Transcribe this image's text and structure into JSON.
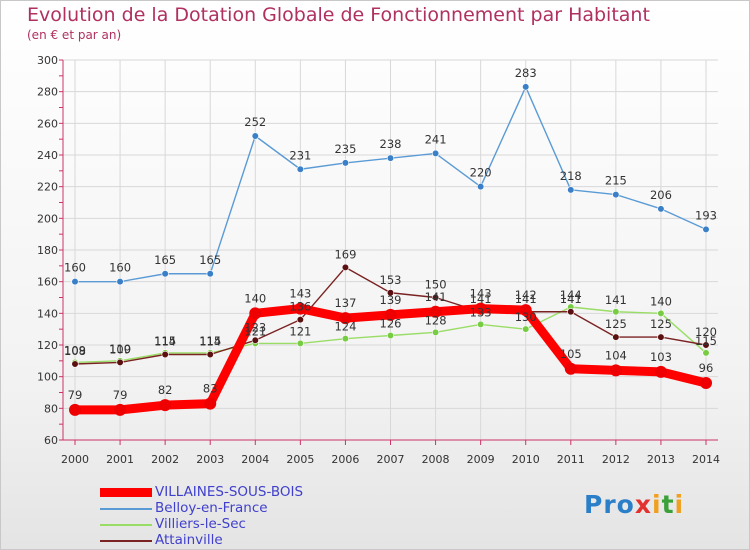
{
  "title": "Evolution de la Dotation Globale de Fonctionnement par Habitant",
  "subtitle": "(en € et par an)",
  "logo": "Proxiti",
  "chart_data": {
    "type": "line",
    "title": "Evolution de la Dotation Globale de Fonctionnement par Habitant",
    "ylabel": "(en € et par an)",
    "xlabel": "",
    "ylim": [
      60,
      300
    ],
    "yticks": [
      60,
      80,
      100,
      120,
      140,
      160,
      180,
      200,
      220,
      240,
      260,
      280,
      300
    ],
    "x": [
      "2000",
      "2001",
      "2002",
      "2003",
      "2004",
      "2005",
      "2006",
      "2007",
      "2008",
      "2009",
      "2010",
      "2011",
      "2012",
      "2013",
      "2014"
    ],
    "grid": true,
    "legend_position": "bottom-left",
    "series": [
      {
        "name": "Belloy-en-France",
        "color": "#5b9bd5",
        "values": [
          160,
          160,
          165,
          165,
          252,
          231,
          235,
          238,
          241,
          220,
          283,
          218,
          215,
          206,
          193
        ]
      },
      {
        "name": "Villiers-le-Sec",
        "color": "#99dd66",
        "values": [
          109,
          110,
          115,
          115,
          121,
          121,
          124,
          126,
          128,
          133,
          130,
          144,
          141,
          140,
          115
        ]
      },
      {
        "name": "Attainville",
        "color": "#7b2222",
        "values": [
          108,
          109,
          114,
          114,
          123,
          136,
          169,
          153,
          150,
          141,
          141,
          141,
          125,
          125,
          120
        ]
      },
      {
        "name": "VILLAINES-SOUS-BOIS",
        "color": "#ff0000",
        "values": [
          79,
          79,
          82,
          83,
          140,
          143,
          137,
          139,
          141,
          143,
          142,
          105,
          104,
          103,
          96
        ]
      }
    ]
  }
}
